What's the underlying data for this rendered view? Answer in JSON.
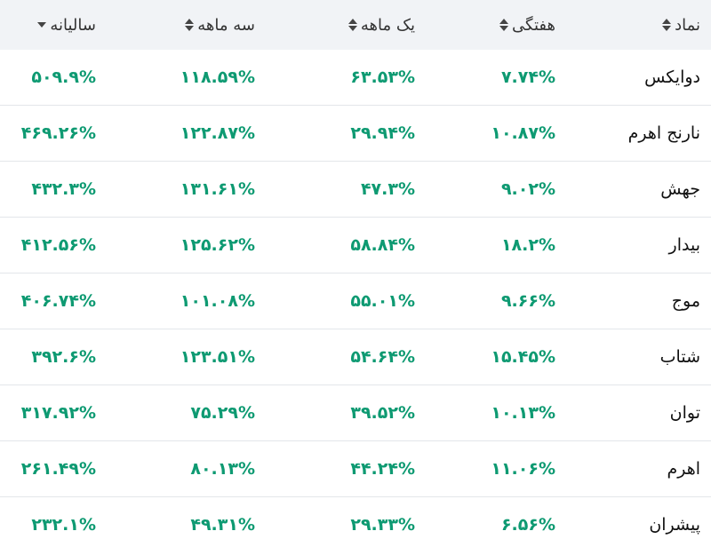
{
  "table": {
    "header": [
      "نماد",
      "هفتگی",
      "یک ماهه",
      "سه ماهه",
      "سالیانه"
    ],
    "rows": [
      [
        "دوایکس",
        "۷.۷۴%",
        "۶۳.۵۳%",
        "۱۱۸.۵۹%",
        "۵۰۹.۹%"
      ],
      [
        "نارنج اهرم",
        "۱۰.۸۷%",
        "۲۹.۹۴%",
        "۱۲۲.۸۷%",
        "۴۶۹.۲۶%"
      ],
      [
        "جهش",
        "۹.۰۲%",
        "۴۷.۳%",
        "۱۳۱.۶۱%",
        "۴۳۲.۳%"
      ],
      [
        "بیدار",
        "۱۸.۲%",
        "۵۸.۸۴%",
        "۱۲۵.۶۲%",
        "۴۱۲.۵۶%"
      ],
      [
        "موج",
        "۹.۶۶%",
        "۵۵.۰۱%",
        "۱۰۱.۰۸%",
        "۴۰۶.۷۴%"
      ],
      [
        "شتاب",
        "۱۵.۴۵%",
        "۵۴.۶۴%",
        "۱۲۳.۵۱%",
        "۳۹۲.۶%"
      ],
      [
        "توان",
        "۱۰.۱۳%",
        "۳۹.۵۲%",
        "۷۵.۲۹%",
        "۳۱۷.۹۲%"
      ],
      [
        "اهرم",
        "۱۱.۰۶%",
        "۴۴.۲۴%",
        "۸۰.۱۳%",
        "۲۶۱.۴۹%"
      ],
      [
        "پیشران",
        "۶.۵۶%",
        "۲۹.۳۳%",
        "۴۹.۳۱%",
        "۲۳۲.۱%"
      ]
    ]
  }
}
